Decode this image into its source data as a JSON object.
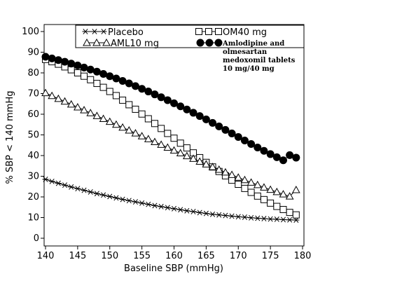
{
  "chart_data": {
    "type": "line",
    "xlabel": "Baseline SBP (mmHg)",
    "ylabel": "% SBP < 140 mmHg",
    "xlim": [
      140,
      180
    ],
    "ylim": [
      0,
      100
    ],
    "x_ticks": [
      "140",
      "145",
      "150",
      "155",
      "160",
      "165",
      "170",
      "175",
      "180"
    ],
    "y_ticks": [
      "0",
      "10",
      "20",
      "30",
      "40",
      "50",
      "60",
      "70",
      "80",
      "90",
      "100"
    ],
    "grid": false,
    "legend_position": "top",
    "x": [
      140,
      141,
      142,
      143,
      144,
      145,
      146,
      147,
      148,
      149,
      150,
      151,
      152,
      153,
      154,
      155,
      156,
      157,
      158,
      159,
      160,
      161,
      162,
      163,
      164,
      165,
      166,
      167,
      168,
      169,
      170,
      171,
      172,
      173,
      174,
      175,
      176,
      177,
      178,
      179
    ],
    "series": [
      {
        "name": "Placebo",
        "marker": "asterisk",
        "values": [
          28.5,
          27.5,
          26.6,
          25.7,
          24.8,
          24.0,
          23.2,
          22.4,
          21.6,
          20.9,
          20.2,
          19.5,
          18.8,
          18.2,
          17.6,
          17.0,
          16.4,
          15.8,
          15.3,
          14.8,
          14.3,
          13.8,
          13.3,
          12.9,
          12.4,
          12.0,
          11.6,
          11.3,
          11.0,
          10.7,
          10.4,
          10.2,
          9.9,
          9.7,
          9.5,
          9.3,
          9.2,
          9.0,
          8.9,
          8.8
        ]
      },
      {
        "name": "OM40 mg",
        "marker": "square",
        "values": [
          86.5,
          85.4,
          84.2,
          82.9,
          81.5,
          80.0,
          78.4,
          76.7,
          74.9,
          73.0,
          71.0,
          69.0,
          66.8,
          64.6,
          62.4,
          60.1,
          57.8,
          55.5,
          53.1,
          50.7,
          48.4,
          46.0,
          43.7,
          41.3,
          39.0,
          36.7,
          34.5,
          32.3,
          30.2,
          28.1,
          26.1,
          24.1,
          22.2,
          20.4,
          18.7,
          17.0,
          15.4,
          13.9,
          12.5,
          11.3
        ]
      },
      {
        "name": "AML10 mg",
        "marker": "triangle",
        "values": [
          70.3,
          68.9,
          67.5,
          66.2,
          64.8,
          63.4,
          62.0,
          60.6,
          59.2,
          57.8,
          56.4,
          55.0,
          53.6,
          52.2,
          50.8,
          49.4,
          48.0,
          46.6,
          45.3,
          43.9,
          42.5,
          41.2,
          39.8,
          38.5,
          37.1,
          35.8,
          34.5,
          33.2,
          31.9,
          30.7,
          29.4,
          28.2,
          27.0,
          25.8,
          24.6,
          23.5,
          22.4,
          21.3,
          20.3,
          23.4
        ]
      },
      {
        "name": "Amlodipine and olmesartan medoxomil tablets 10 mg/40 mg",
        "marker": "filled-circle",
        "values": [
          87.8,
          87.0,
          86.2,
          85.4,
          84.5,
          83.6,
          82.6,
          81.6,
          80.6,
          79.5,
          78.4,
          77.3,
          76.1,
          74.9,
          73.6,
          72.3,
          71.0,
          69.6,
          68.2,
          66.8,
          65.3,
          63.8,
          62.3,
          60.7,
          59.1,
          57.5,
          55.8,
          54.1,
          52.4,
          50.7,
          49.0,
          47.3,
          45.6,
          43.9,
          42.3,
          40.7,
          39.2,
          37.7,
          40.2,
          39.0
        ]
      }
    ]
  },
  "legend": {
    "entries": [
      {
        "label": "Placebo",
        "marker": "asterisk"
      },
      {
        "label": "OM40 mg",
        "marker": "square"
      },
      {
        "label": "AML10 mg",
        "marker": "triangle"
      },
      {
        "label_lines": [
          "Amlodipine and",
          "olmesartan",
          "medoxomil tablets",
          "10 mg/40 mg"
        ],
        "marker": "filled-circle"
      }
    ]
  }
}
